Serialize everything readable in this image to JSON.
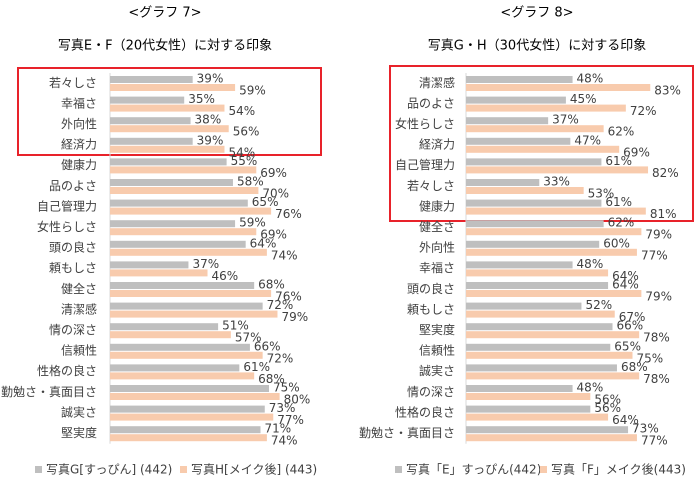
{
  "chart_data": [
    {
      "type": "bar",
      "orientation": "horizontal",
      "heading": "<グラフ 7>",
      "title": "写真E・F（20代女性）に対する印象",
      "categories": [
        "若々しさ",
        "幸福さ",
        "外向性",
        "経済力",
        "健康力",
        "品のよさ",
        "自己管理力",
        "女性らしさ",
        "頭の良さ",
        "頼もしさ",
        "健全さ",
        "清潔感",
        "情の深さ",
        "信頼性",
        "性格の良さ",
        "勤勉さ・真面目さ",
        "誠実さ",
        "堅実度"
      ],
      "series": [
        {
          "name": "写真G[すっぴん] (442)",
          "color": "#bfbfbf",
          "values": [
            39,
            35,
            38,
            39,
            55,
            58,
            65,
            59,
            64,
            37,
            68,
            72,
            51,
            66,
            61,
            75,
            73,
            71
          ],
          "value_labels": [
            "39%",
            "35%",
            "38%",
            "39%",
            "55%",
            "58%",
            "65%",
            "59%",
            "64%",
            "37%",
            "68%",
            "72%",
            "51%",
            "66%",
            "61%",
            "75%",
            "73%",
            "71%"
          ]
        },
        {
          "name": "写真H[メイク後] (443)",
          "color": "#f8cbad",
          "values": [
            59,
            54,
            56,
            54,
            69,
            70,
            76,
            69,
            74,
            46,
            76,
            79,
            57,
            72,
            68,
            80,
            77,
            74
          ],
          "value_labels": [
            "59%",
            "54%",
            "56%",
            "54%",
            "69%",
            "70%",
            "76%",
            "69%",
            "74%",
            "46%",
            "76%",
            "79%",
            "57%",
            "72%",
            "68%",
            "80%",
            "77%",
            "74%"
          ]
        }
      ],
      "xlim": [
        0,
        100
      ]
    },
    {
      "type": "bar",
      "orientation": "horizontal",
      "heading": "<グラフ 8>",
      "title": "写真G・H（30代女性）に対する印象",
      "categories": [
        "清潔感",
        "品のよさ",
        "女性らしさ",
        "経済力",
        "自己管理力",
        "若々しさ",
        "健康力",
        "健全さ",
        "外向性",
        "幸福さ",
        "頭の良さ",
        "頼もしさ",
        "堅実度",
        "信頼性",
        "誠実さ",
        "情の深さ",
        "性格の良さ",
        "勤勉さ・真面目さ"
      ],
      "series": [
        {
          "name": "写真「E」すっぴん(442)",
          "color": "#bfbfbf",
          "values": [
            48,
            45,
            37,
            47,
            61,
            33,
            61,
            62,
            60,
            48,
            64,
            52,
            66,
            65,
            68,
            48,
            56,
            73
          ],
          "value_labels": [
            "48%",
            "45%",
            "37%",
            "47%",
            "61%",
            "33%",
            "61%",
            "62%",
            "60%",
            "48%",
            "64%",
            "52%",
            "66%",
            "65%",
            "68%",
            "48%",
            "56%",
            "73%"
          ]
        },
        {
          "name": "写真「F」メイク後(443)",
          "color": "#f8cbad",
          "values": [
            83,
            72,
            62,
            69,
            82,
            53,
            81,
            79,
            77,
            64,
            79,
            67,
            78,
            75,
            78,
            56,
            64,
            77
          ],
          "value_labels": [
            "83%",
            "72%",
            "62%",
            "69%",
            "82%",
            "53%",
            "81%",
            "79%",
            "77%",
            "64%",
            "79%",
            "67%",
            "78%",
            "75%",
            "78%",
            "56%",
            "64%",
            "77%"
          ]
        }
      ],
      "xlim": [
        0,
        100
      ]
    }
  ]
}
